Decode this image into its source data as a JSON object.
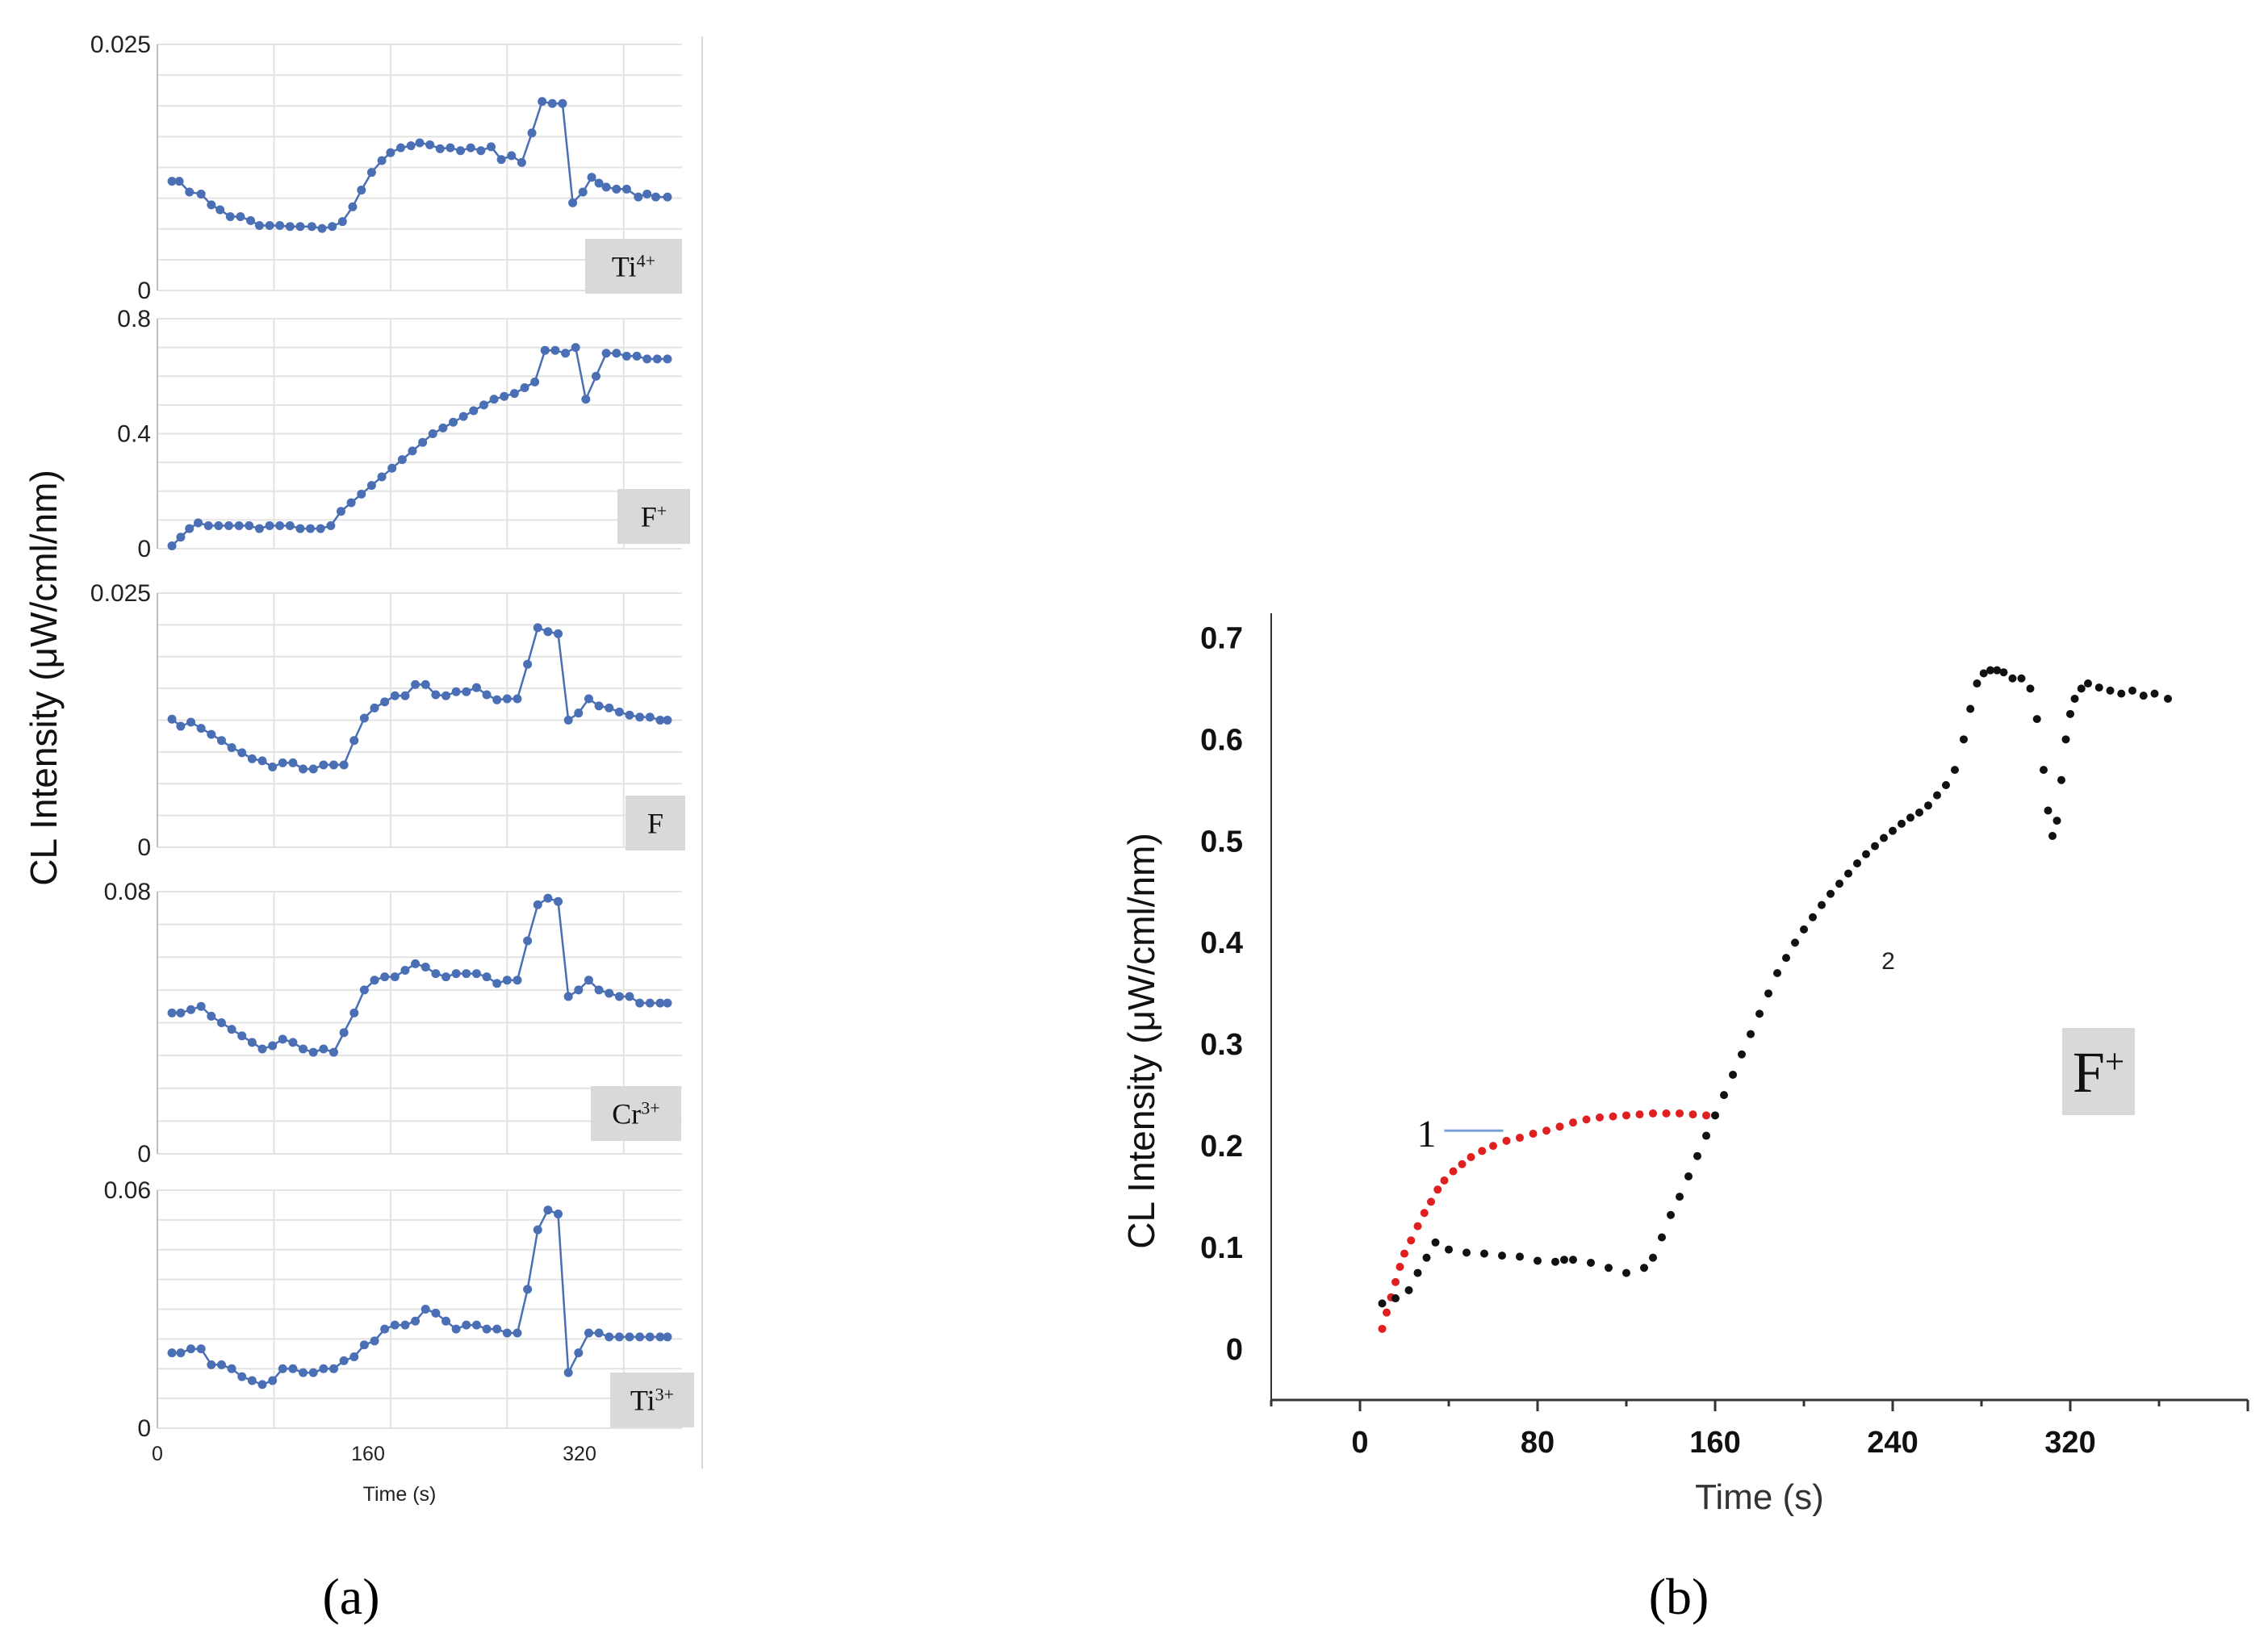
{
  "figure": {
    "panel_a_label": "(a)",
    "panel_b_label": "(b)"
  },
  "chart_data": [
    {
      "type": "line",
      "panel": "a",
      "subplot": 1,
      "badge": "Ti",
      "badge_sup": "4+",
      "ytick_labels": [
        "0.025",
        "0"
      ],
      "ylim": [
        0,
        0.025
      ],
      "xlim": [
        0,
        360
      ],
      "color": "#4a6fb5",
      "x": [
        10,
        15,
        22,
        30,
        37,
        43,
        50,
        57,
        64,
        70,
        77,
        84,
        91,
        98,
        106,
        113,
        120,
        127,
        134,
        140,
        147,
        154,
        160,
        167,
        174,
        180,
        187,
        194,
        201,
        208,
        215,
        222,
        229,
        236,
        243,
        250,
        257,
        264,
        271,
        278,
        285,
        292,
        298,
        303,
        308,
        315,
        322,
        330,
        336,
        342,
        350
      ],
      "values": [
        0.0111,
        0.0111,
        0.01,
        0.0098,
        0.0087,
        0.0082,
        0.0075,
        0.0075,
        0.0071,
        0.0066,
        0.0066,
        0.0066,
        0.0065,
        0.0065,
        0.0065,
        0.0063,
        0.0065,
        0.007,
        0.0085,
        0.0102,
        0.012,
        0.0132,
        0.014,
        0.0145,
        0.0147,
        0.015,
        0.0148,
        0.0144,
        0.0145,
        0.0142,
        0.0145,
        0.0142,
        0.0146,
        0.0133,
        0.0137,
        0.013,
        0.016,
        0.0192,
        0.019,
        0.019,
        0.0089,
        0.01,
        0.0115,
        0.0109,
        0.0105,
        0.0103,
        0.0103,
        0.0095,
        0.0098,
        0.0095,
        0.0095
      ],
      "ylabel": "CL  Intensity  (μW/cml/nm)"
    },
    {
      "type": "line",
      "panel": "a",
      "subplot": 2,
      "badge": "F",
      "badge_sup": "+",
      "ytick_labels": [
        "0.8",
        "0.4",
        "0"
      ],
      "ylim": [
        0,
        0.8
      ],
      "xlim": [
        0,
        360
      ],
      "color": "#4a6fb5",
      "x": [
        10,
        16,
        22,
        28,
        35,
        42,
        49,
        56,
        63,
        70,
        77,
        84,
        91,
        98,
        105,
        112,
        119,
        126,
        133,
        140,
        147,
        154,
        161,
        168,
        175,
        182,
        189,
        196,
        203,
        210,
        217,
        224,
        231,
        238,
        245,
        252,
        259,
        266,
        273,
        280,
        287,
        294,
        301,
        308,
        315,
        322,
        329,
        336,
        343,
        350
      ],
      "values": [
        0.01,
        0.04,
        0.07,
        0.09,
        0.08,
        0.08,
        0.08,
        0.08,
        0.08,
        0.07,
        0.08,
        0.08,
        0.08,
        0.07,
        0.07,
        0.07,
        0.08,
        0.13,
        0.16,
        0.19,
        0.22,
        0.25,
        0.28,
        0.31,
        0.34,
        0.37,
        0.4,
        0.42,
        0.44,
        0.46,
        0.48,
        0.5,
        0.52,
        0.53,
        0.54,
        0.56,
        0.58,
        0.69,
        0.69,
        0.68,
        0.7,
        0.52,
        0.6,
        0.68,
        0.68,
        0.67,
        0.67,
        0.66,
        0.66,
        0.66
      ],
      "ylabel": ""
    },
    {
      "type": "line",
      "panel": "a",
      "subplot": 3,
      "badge": "F",
      "badge_sup": "",
      "ytick_labels": [
        "0.025",
        "0"
      ],
      "ylim": [
        0,
        0.025
      ],
      "xlim": [
        0,
        360
      ],
      "color": "#4a6fb5",
      "x": [
        10,
        16,
        23,
        30,
        37,
        44,
        51,
        58,
        65,
        72,
        79,
        86,
        93,
        100,
        107,
        114,
        121,
        128,
        135,
        142,
        149,
        156,
        163,
        170,
        177,
        184,
        191,
        198,
        205,
        212,
        219,
        226,
        233,
        240,
        247,
        254,
        261,
        268,
        275,
        282,
        289,
        296,
        303,
        310,
        317,
        324,
        331,
        338,
        345,
        350
      ],
      "values": [
        0.0126,
        0.0119,
        0.0123,
        0.0117,
        0.0111,
        0.0105,
        0.0098,
        0.0093,
        0.0087,
        0.0085,
        0.0079,
        0.0083,
        0.0083,
        0.0077,
        0.0077,
        0.0081,
        0.0081,
        0.0081,
        0.0105,
        0.0127,
        0.0137,
        0.0143,
        0.0149,
        0.0149,
        0.016,
        0.016,
        0.015,
        0.0149,
        0.0153,
        0.0153,
        0.0157,
        0.015,
        0.0145,
        0.0146,
        0.0146,
        0.018,
        0.0216,
        0.0212,
        0.021,
        0.0125,
        0.0132,
        0.0146,
        0.0139,
        0.0137,
        0.0133,
        0.013,
        0.0128,
        0.0128,
        0.0125,
        0.0125
      ],
      "ylabel": ""
    },
    {
      "type": "line",
      "panel": "a",
      "subplot": 4,
      "badge": "Cr",
      "badge_sup": "3+",
      "ytick_labels": [
        "0.08",
        "0"
      ],
      "ylim": [
        0,
        0.08
      ],
      "xlim": [
        0,
        360
      ],
      "color": "#4a6fb5",
      "x": [
        10,
        16,
        23,
        30,
        37,
        44,
        51,
        58,
        65,
        72,
        79,
        86,
        93,
        100,
        107,
        114,
        121,
        128,
        135,
        142,
        149,
        156,
        163,
        170,
        177,
        184,
        191,
        198,
        205,
        212,
        219,
        226,
        233,
        240,
        247,
        254,
        261,
        268,
        275,
        282,
        289,
        296,
        303,
        310,
        317,
        324,
        331,
        338,
        345,
        350
      ],
      "values": [
        0.043,
        0.043,
        0.044,
        0.045,
        0.042,
        0.04,
        0.038,
        0.036,
        0.034,
        0.032,
        0.033,
        0.035,
        0.034,
        0.032,
        0.031,
        0.032,
        0.031,
        0.037,
        0.043,
        0.05,
        0.053,
        0.054,
        0.054,
        0.056,
        0.058,
        0.057,
        0.055,
        0.054,
        0.055,
        0.055,
        0.055,
        0.054,
        0.052,
        0.053,
        0.053,
        0.065,
        0.076,
        0.078,
        0.077,
        0.048,
        0.05,
        0.053,
        0.05,
        0.049,
        0.048,
        0.048,
        0.046,
        0.046,
        0.046,
        0.046
      ],
      "ylabel": ""
    },
    {
      "type": "line",
      "panel": "a",
      "subplot": 5,
      "badge": "Ti",
      "badge_sup": "3+",
      "ytick_labels": [
        "0.06",
        "0"
      ],
      "ylim": [
        0,
        0.06
      ],
      "xlim": [
        0,
        360
      ],
      "color": "#4a6fb5",
      "x": [
        10,
        16,
        23,
        30,
        37,
        44,
        51,
        58,
        65,
        72,
        79,
        86,
        93,
        100,
        107,
        114,
        121,
        128,
        135,
        142,
        149,
        156,
        163,
        170,
        177,
        184,
        191,
        198,
        205,
        212,
        219,
        226,
        233,
        240,
        247,
        254,
        261,
        268,
        275,
        282,
        289,
        296,
        303,
        310,
        317,
        324,
        331,
        338,
        345,
        350
      ],
      "values": [
        0.019,
        0.019,
        0.02,
        0.02,
        0.016,
        0.016,
        0.015,
        0.013,
        0.012,
        0.011,
        0.012,
        0.015,
        0.015,
        0.014,
        0.014,
        0.015,
        0.015,
        0.017,
        0.018,
        0.021,
        0.022,
        0.025,
        0.026,
        0.026,
        0.027,
        0.03,
        0.029,
        0.027,
        0.025,
        0.026,
        0.026,
        0.025,
        0.025,
        0.024,
        0.024,
        0.035,
        0.05,
        0.055,
        0.054,
        0.014,
        0.019,
        0.024,
        0.024,
        0.023,
        0.023,
        0.023,
        0.023,
        0.023,
        0.023,
        0.023
      ],
      "ylabel": "",
      "xticks": [
        0,
        160,
        320
      ],
      "xtick_labels": [
        "0",
        "160",
        "320"
      ],
      "xlabel": "Time (s)"
    },
    {
      "type": "scatter",
      "panel": "b",
      "title": "",
      "badge": "F",
      "badge_sup": "+",
      "xlabel": "Time (s)",
      "ylabel": "CL  Intensity  (μW/cml/nm)",
      "xlim": [
        -40,
        400
      ],
      "ylim": [
        -0.05,
        0.74
      ],
      "xticks": [
        0,
        80,
        160,
        240,
        320
      ],
      "xtick_labels": [
        "0",
        "80",
        "160",
        "240",
        "320"
      ],
      "yticks": [
        0,
        0.1,
        0.2,
        0.3,
        0.4,
        0.5,
        0.6,
        0.7
      ],
      "ytick_labels": [
        "0",
        "0.1",
        "0.2",
        "0.3",
        "0.4",
        "0.5",
        "0.6",
        "0.7"
      ],
      "series": [
        {
          "name": "1",
          "color": "#e02020",
          "x": [
            10,
            12,
            14,
            16,
            18,
            20,
            23,
            26,
            29,
            32,
            35,
            38,
            42,
            46,
            50,
            55,
            60,
            66,
            72,
            78,
            84,
            90,
            96,
            102,
            108,
            114,
            120,
            126,
            132,
            138,
            144,
            150,
            156
          ],
          "values": [
            0.02,
            0.036,
            0.051,
            0.066,
            0.081,
            0.094,
            0.107,
            0.121,
            0.134,
            0.145,
            0.157,
            0.166,
            0.175,
            0.182,
            0.189,
            0.195,
            0.2,
            0.205,
            0.208,
            0.212,
            0.215,
            0.219,
            0.223,
            0.226,
            0.228,
            0.229,
            0.23,
            0.231,
            0.232,
            0.232,
            0.232,
            0.231,
            0.23
          ]
        },
        {
          "name": "2",
          "color": "#111111",
          "x": [
            10,
            16,
            22,
            26,
            30,
            34,
            40,
            48,
            56,
            64,
            72,
            80,
            88,
            92,
            96,
            104,
            112,
            120,
            128,
            132,
            136,
            140,
            144,
            148,
            152,
            156,
            160,
            164,
            168,
            172,
            176,
            180,
            184,
            188,
            192,
            196,
            200,
            204,
            208,
            212,
            216,
            220,
            224,
            228,
            232,
            236,
            240,
            244,
            248,
            252,
            256,
            260,
            264,
            268,
            272,
            275,
            278,
            281,
            284,
            287,
            290,
            294,
            298,
            302,
            305,
            308,
            310,
            312,
            314,
            316,
            318,
            320,
            322,
            325,
            328,
            333,
            338,
            343,
            348,
            353,
            358,
            364
          ],
          "values": [
            0.045,
            0.05,
            0.058,
            0.075,
            0.09,
            0.105,
            0.098,
            0.095,
            0.094,
            0.092,
            0.091,
            0.087,
            0.086,
            0.088,
            0.088,
            0.085,
            0.08,
            0.075,
            0.08,
            0.09,
            0.11,
            0.132,
            0.15,
            0.17,
            0.19,
            0.21,
            0.23,
            0.25,
            0.27,
            0.29,
            0.31,
            0.33,
            0.35,
            0.37,
            0.385,
            0.4,
            0.413,
            0.425,
            0.437,
            0.448,
            0.458,
            0.468,
            0.478,
            0.487,
            0.495,
            0.503,
            0.51,
            0.517,
            0.523,
            0.528,
            0.535,
            0.545,
            0.555,
            0.57,
            0.6,
            0.63,
            0.655,
            0.665,
            0.668,
            0.668,
            0.666,
            0.66,
            0.66,
            0.65,
            0.62,
            0.57,
            0.53,
            0.505,
            0.52,
            0.56,
            0.6,
            0.625,
            0.64,
            0.65,
            0.655,
            0.651,
            0.648,
            0.645,
            0.648,
            0.643,
            0.645,
            0.64
          ]
        }
      ],
      "annotations": [
        {
          "text": "1",
          "x": 30,
          "y": 0.215
        },
        {
          "text": "2",
          "x": 238,
          "y": 0.39
        }
      ]
    }
  ]
}
